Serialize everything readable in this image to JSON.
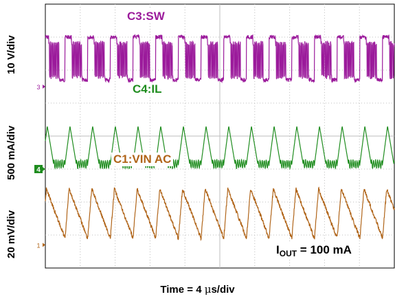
{
  "chart_data": {
    "type": "line",
    "time_per_div_us": 4,
    "x_divisions": 10,
    "x_range_us": [
      0,
      40
    ],
    "y_divisions": 8,
    "grid": true,
    "xlabel_parts": {
      "prefix": "Time = 4 ",
      "mu": "μ",
      "suffix": "s/div"
    },
    "annotation_parts": {
      "main": "I",
      "sub": "OUT",
      "rest": " = 100 mA"
    },
    "series": [
      {
        "name": "C3:SW",
        "scale_label": "10 V/div",
        "color": "#9b1a9b",
        "marker": "3",
        "waveform": "switching burst",
        "period_us": 2.6,
        "amplitude_div": 1.3
      },
      {
        "name": "C4:IL",
        "scale_label": "500 mA/div",
        "color": "#1e8c1e",
        "marker": "4",
        "waveform": "triangle",
        "period_us": 2.6,
        "peak_to_peak_mA": 600
      },
      {
        "name": "C1:VIN AC",
        "scale_label": "20 mV/div",
        "color": "#b06418",
        "marker": "1",
        "waveform": "sawtooth ripple",
        "period_us": 2.6,
        "peak_to_peak_mV": 40
      }
    ]
  }
}
